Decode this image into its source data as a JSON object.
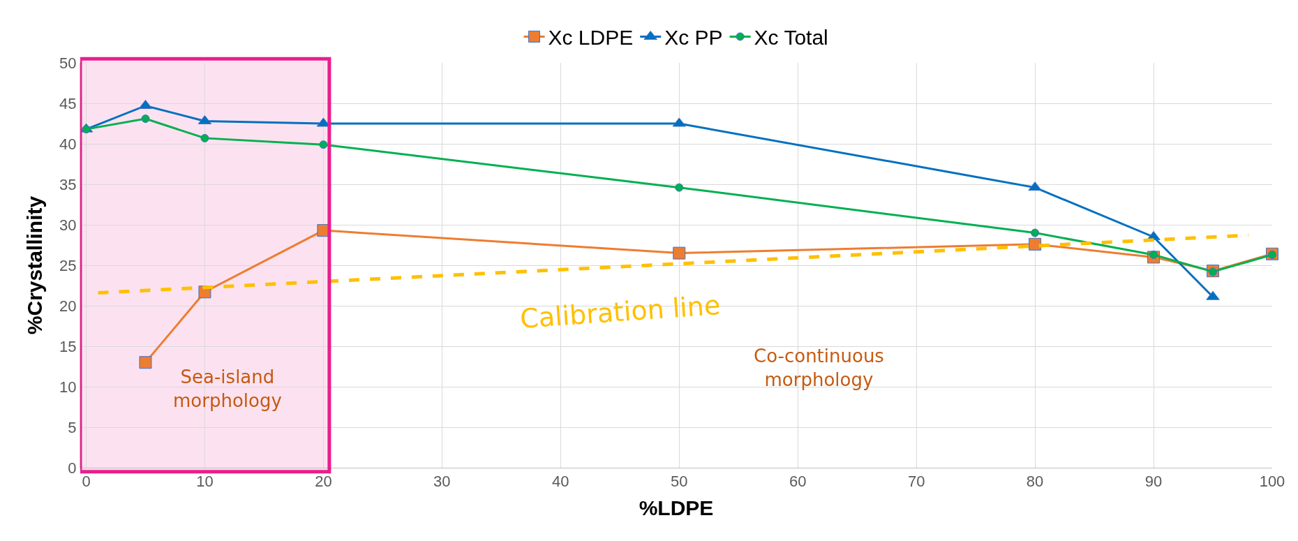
{
  "chart_data": {
    "type": "line",
    "xlabel": "%LDPE",
    "ylabel": "%Crystallinity",
    "x": [
      0,
      5,
      10,
      20,
      50,
      80,
      90,
      95,
      100
    ],
    "series": [
      {
        "name": "Xc LDPE",
        "color": "#ed7d31",
        "marker": "square",
        "values": [
          null,
          13.0,
          21.7,
          29.3,
          26.5,
          27.6,
          26.0,
          24.3,
          26.4
        ]
      },
      {
        "name": "Xc PP",
        "color": "#0070c0",
        "marker": "triangle",
        "values": [
          41.8,
          44.7,
          42.8,
          42.5,
          42.5,
          34.6,
          28.5,
          21.1,
          null
        ]
      },
      {
        "name": "Xc Total",
        "color": "#00b050",
        "marker": "circle",
        "values": [
          41.8,
          43.1,
          40.7,
          39.9,
          34.6,
          29.0,
          26.3,
          24.2,
          26.3
        ]
      },
      {
        "name": "Calibration line",
        "color": "#ffc000",
        "marker": "none",
        "line_style": "dashed",
        "x": [
          1,
          98
        ],
        "values": [
          21.6,
          28.7
        ]
      }
    ],
    "bands": [
      {
        "axis": "x",
        "from": -0.5,
        "to": 20.5,
        "color": "#e91e8c"
      }
    ],
    "annotations": [
      "Sea-island morphology",
      "Co-continuous morphology"
    ],
    "xlim": [
      -0.5,
      100
    ],
    "xticks": [
      0,
      10,
      20,
      30,
      40,
      50,
      60,
      70,
      80,
      90,
      100
    ],
    "ylim": [
      0,
      50
    ],
    "yticks": [
      0,
      5,
      10,
      15,
      20,
      25,
      30,
      35,
      40,
      45,
      50
    ],
    "grid": true,
    "legend": "top",
    "line_style": "solid"
  }
}
